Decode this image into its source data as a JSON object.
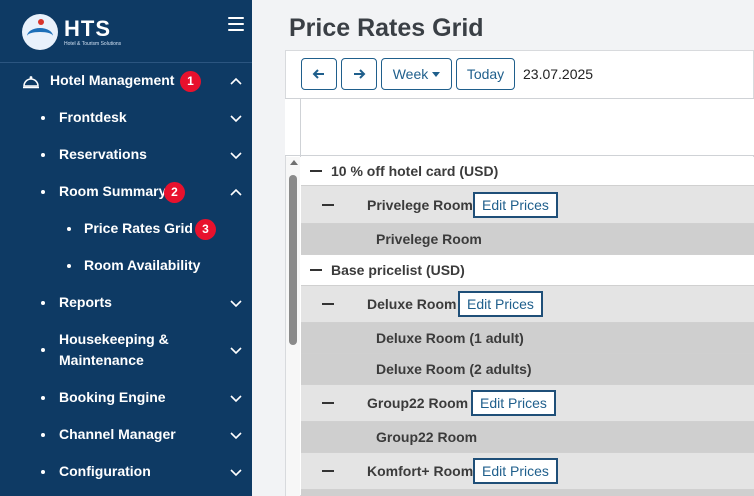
{
  "sidebar": {
    "logo_name": "HTS",
    "logo_subtitle": "Hotel & Tourism Solutions",
    "items": [
      {
        "label": "Hotel Management",
        "badge": "1",
        "chevron": "up"
      },
      {
        "label": "Frontdesk",
        "chevron": "down"
      },
      {
        "label": "Reservations",
        "chevron": "down"
      },
      {
        "label": "Room Summary",
        "badge": "2",
        "chevron": "up"
      },
      {
        "label": "Price Rates Grid",
        "badge": "3"
      },
      {
        "label": "Room Availability"
      },
      {
        "label": "Reports",
        "chevron": "down"
      },
      {
        "label_line1": "Housekeeping &",
        "label_line2": "Maintenance",
        "chevron": "down"
      },
      {
        "label": "Booking Engine",
        "chevron": "down"
      },
      {
        "label": "Channel Manager",
        "chevron": "down"
      },
      {
        "label": "Configuration",
        "chevron": "down"
      }
    ]
  },
  "page": {
    "title": "Price Rates Grid"
  },
  "toolbar": {
    "prev_icon": "arrow-left-icon",
    "next_icon": "arrow-right-icon",
    "view_label": "Week",
    "today_label": "Today",
    "date": "23.07.2025"
  },
  "grid": {
    "edit_label": "Edit Prices",
    "groups": [
      {
        "label": "10 % off hotel card (USD)",
        "rooms": [
          {
            "label": "Privelege Room",
            "subs": [
              "Privelege Room"
            ]
          }
        ]
      },
      {
        "label": "Base pricelist (USD)",
        "rooms": [
          {
            "label": "Deluxe Room",
            "subs": [
              "Deluxe Room (1 adult)",
              "Deluxe Room (2 adults)"
            ]
          },
          {
            "label": "Group22 Room",
            "subs": [
              "Group22 Room"
            ]
          },
          {
            "label": "Komfort+ Room",
            "subs": []
          }
        ]
      }
    ]
  },
  "colors": {
    "sidebar_bg": "#0e3a64",
    "badge": "#e8112d",
    "accent": "#1f5f8c"
  }
}
